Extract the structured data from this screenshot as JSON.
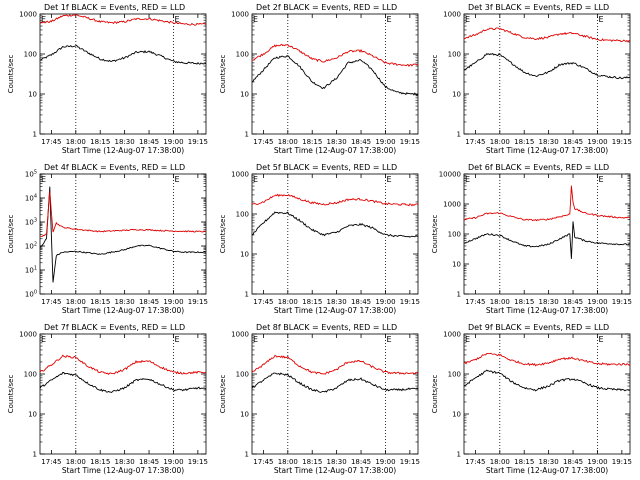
{
  "colors": {
    "events": "#000000",
    "lld": "#e00000",
    "axis": "#000000",
    "background": "#ffffff"
  },
  "common": {
    "ylabel": "Counts/sec",
    "xlabel": "Start Time (12-Aug-07 17:38:00)",
    "xticks": [
      "17:45",
      "18:00",
      "18:15",
      "18:30",
      "18:45",
      "19:00",
      "19:15"
    ],
    "marker_e": "E",
    "dotted_lines_at": [
      "18:00",
      "19:00"
    ]
  },
  "chart_data": [
    {
      "type": "line",
      "title": "Det 1f BLACK = Events, RED = LLD",
      "xlabel": "Start Time (12-Aug-07 17:38:00)",
      "ylabel": "Counts/sec",
      "yscale": "log",
      "xlim": [
        "17:38",
        "19:20"
      ],
      "ylim": [
        1,
        1000
      ],
      "yticks": [
        "1",
        "10",
        "100",
        "1000"
      ],
      "x": [
        "17:38",
        "17:45",
        "17:52",
        "18:00",
        "18:07",
        "18:15",
        "18:22",
        "18:30",
        "18:37",
        "18:45",
        "18:52",
        "19:00",
        "19:07",
        "19:15",
        "19:20"
      ],
      "series": [
        {
          "name": "BLACK = Events",
          "values": [
            70,
            95,
            150,
            160,
            110,
            75,
            65,
            80,
            110,
            115,
            90,
            65,
            60,
            58,
            60
          ]
        },
        {
          "name": "RED = LLD",
          "values": [
            600,
            650,
            900,
            950,
            800,
            640,
            600,
            640,
            750,
            760,
            680,
            600,
            560,
            550,
            550
          ]
        }
      ]
    },
    {
      "type": "line",
      "title": "Det 2f BLACK = Events, RED = LLD",
      "xlabel": "Start Time (12-Aug-07 17:38:00)",
      "ylabel": "Counts/sec",
      "yscale": "log",
      "xlim": [
        "17:38",
        "19:20"
      ],
      "ylim": [
        1,
        1000
      ],
      "yticks": [
        "1",
        "10",
        "100",
        "1000"
      ],
      "x": [
        "17:38",
        "17:45",
        "17:52",
        "18:00",
        "18:07",
        "18:15",
        "18:22",
        "18:30",
        "18:37",
        "18:45",
        "18:52",
        "19:00",
        "19:07",
        "19:15",
        "19:20"
      ],
      "series": [
        {
          "name": "BLACK = Events",
          "values": [
            20,
            40,
            80,
            90,
            50,
            20,
            14,
            25,
            60,
            70,
            40,
            15,
            11,
            10,
            10
          ]
        },
        {
          "name": "RED = LLD",
          "values": [
            70,
            100,
            160,
            170,
            120,
            75,
            65,
            80,
            115,
            120,
            90,
            60,
            55,
            52,
            55
          ]
        }
      ]
    },
    {
      "type": "line",
      "title": "Det 3f BLACK = Events, RED = LLD",
      "xlabel": "Start Time (12-Aug-07 17:38:00)",
      "ylabel": "Counts/sec",
      "yscale": "log",
      "xlim": [
        "17:38",
        "19:20"
      ],
      "ylim": [
        1,
        1000
      ],
      "yticks": [
        "1",
        "10",
        "100",
        "1000"
      ],
      "x": [
        "17:38",
        "17:45",
        "17:52",
        "18:00",
        "18:07",
        "18:15",
        "18:22",
        "18:30",
        "18:37",
        "18:45",
        "18:52",
        "19:00",
        "19:07",
        "19:15",
        "19:20"
      ],
      "series": [
        {
          "name": "BLACK = Events",
          "values": [
            40,
            60,
            100,
            95,
            60,
            35,
            28,
            35,
            55,
            60,
            45,
            30,
            27,
            25,
            26
          ]
        },
        {
          "name": "RED = LLD",
          "values": [
            250,
            300,
            420,
            430,
            340,
            260,
            240,
            260,
            320,
            330,
            280,
            230,
            220,
            215,
            215
          ]
        }
      ]
    },
    {
      "type": "line",
      "title": "Det 4f BLACK = Events, RED = LLD",
      "xlabel": "Start Time (12-Aug-07 17:38:00)",
      "ylabel": "Counts/sec",
      "yscale": "log",
      "xlim": [
        "17:38",
        "19:20"
      ],
      "ylim": [
        1,
        100000
      ],
      "yticks": [
        "10^0",
        "10^1",
        "10^2",
        "10^3",
        "10^4",
        "10^5"
      ],
      "x": [
        "17:38",
        "17:42",
        "17:44",
        "17:46",
        "17:48",
        "17:52",
        "18:00",
        "18:15",
        "18:30",
        "18:37",
        "18:45",
        "18:52",
        "19:00",
        "19:07",
        "19:15",
        "19:20"
      ],
      "series": [
        {
          "name": "BLACK = Events",
          "values": [
            80,
            200,
            30000,
            3,
            40,
            55,
            60,
            45,
            70,
            100,
            105,
            80,
            60,
            55,
            55,
            55
          ]
        },
        {
          "name": "RED = LLD",
          "values": [
            250,
            300,
            20000,
            400,
            900,
            600,
            500,
            400,
            450,
            480,
            470,
            440,
            420,
            410,
            400,
            400
          ]
        }
      ]
    },
    {
      "type": "line",
      "title": "Det 5f BLACK = Events, RED = LLD",
      "xlabel": "Start Time (12-Aug-07 17:38:00)",
      "ylabel": "Counts/sec",
      "yscale": "log",
      "xlim": [
        "17:38",
        "19:20"
      ],
      "ylim": [
        1,
        1000
      ],
      "yticks": [
        "1",
        "10",
        "100",
        "1000"
      ],
      "x": [
        "17:38",
        "17:45",
        "17:52",
        "18:00",
        "18:07",
        "18:15",
        "18:22",
        "18:30",
        "18:37",
        "18:45",
        "18:52",
        "19:00",
        "19:07",
        "19:15",
        "19:20"
      ],
      "series": [
        {
          "name": "BLACK = Events",
          "values": [
            30,
            60,
            110,
            105,
            70,
            40,
            30,
            35,
            50,
            55,
            45,
            30,
            28,
            27,
            28
          ]
        },
        {
          "name": "RED = LLD",
          "values": [
            170,
            200,
            290,
            300,
            240,
            190,
            175,
            190,
            230,
            235,
            210,
            180,
            175,
            170,
            170
          ]
        }
      ]
    },
    {
      "type": "line",
      "title": "Det 6f BLACK = Events, RED = LLD",
      "xlabel": "Start Time (12-Aug-07 17:38:00)",
      "ylabel": "Counts/sec",
      "yscale": "log",
      "xlim": [
        "17:38",
        "19:20"
      ],
      "ylim": [
        1,
        10000
      ],
      "yticks": [
        "1",
        "10",
        "100",
        "1000",
        "10000"
      ],
      "x": [
        "17:38",
        "17:45",
        "17:52",
        "18:00",
        "18:07",
        "18:15",
        "18:22",
        "18:30",
        "18:37",
        "18:43",
        "18:44",
        "18:45",
        "18:46",
        "18:52",
        "19:00",
        "19:07",
        "19:15",
        "19:20"
      ],
      "series": [
        {
          "name": "BLACK = Events",
          "values": [
            50,
            70,
            100,
            90,
            60,
            40,
            38,
            45,
            70,
            100,
            15,
            250,
            80,
            60,
            50,
            48,
            45,
            45
          ]
        },
        {
          "name": "RED = LLD",
          "values": [
            300,
            350,
            480,
            500,
            380,
            300,
            290,
            310,
            380,
            450,
            4000,
            1200,
            700,
            500,
            420,
            380,
            350,
            350
          ]
        }
      ]
    },
    {
      "type": "line",
      "title": "Det 7f BLACK = Events, RED = LLD",
      "xlabel": "Start Time (12-Aug-07 17:38:00)",
      "ylabel": "Counts/sec",
      "yscale": "log",
      "xlim": [
        "17:38",
        "19:20"
      ],
      "ylim": [
        1,
        1000
      ],
      "yticks": [
        "1",
        "10",
        "100",
        "1000"
      ],
      "x": [
        "17:38",
        "17:45",
        "17:52",
        "18:00",
        "18:07",
        "18:15",
        "18:22",
        "18:30",
        "18:37",
        "18:45",
        "18:52",
        "19:00",
        "19:07",
        "19:15",
        "19:20"
      ],
      "series": [
        {
          "name": "BLACK = Events",
          "values": [
            45,
            70,
            105,
            95,
            60,
            40,
            35,
            45,
            70,
            75,
            55,
            40,
            40,
            45,
            42
          ]
        },
        {
          "name": "RED = LLD",
          "values": [
            110,
            170,
            280,
            260,
            160,
            110,
            100,
            130,
            200,
            210,
            150,
            110,
            105,
            110,
            110
          ]
        }
      ]
    },
    {
      "type": "line",
      "title": "Det 8f BLACK = Events, RED = LLD",
      "xlabel": "Start Time (12-Aug-07 17:38:00)",
      "ylabel": "Counts/sec",
      "yscale": "log",
      "xlim": [
        "17:38",
        "19:20"
      ],
      "ylim": [
        1,
        1000
      ],
      "yticks": [
        "1",
        "10",
        "100",
        "1000"
      ],
      "x": [
        "17:38",
        "17:45",
        "17:52",
        "18:00",
        "18:07",
        "18:15",
        "18:22",
        "18:30",
        "18:37",
        "18:45",
        "18:52",
        "19:00",
        "19:07",
        "19:15",
        "19:20"
      ],
      "series": [
        {
          "name": "BLACK = Events",
          "values": [
            45,
            70,
            105,
            95,
            60,
            40,
            35,
            45,
            70,
            75,
            55,
            40,
            40,
            42,
            42
          ]
        },
        {
          "name": "RED = LLD",
          "values": [
            110,
            170,
            280,
            260,
            160,
            110,
            100,
            130,
            200,
            210,
            150,
            110,
            105,
            105,
            105
          ]
        }
      ]
    },
    {
      "type": "line",
      "title": "Det 9f BLACK = Events, RED = LLD",
      "xlabel": "Start Time (12-Aug-07 17:38:00)",
      "ylabel": "Counts/sec",
      "yscale": "log",
      "xlim": [
        "17:38",
        "19:20"
      ],
      "ylim": [
        1,
        1000
      ],
      "yticks": [
        "1",
        "10",
        "100",
        "1000"
      ],
      "x": [
        "17:38",
        "17:45",
        "17:52",
        "18:00",
        "18:07",
        "18:15",
        "18:22",
        "18:30",
        "18:37",
        "18:45",
        "18:52",
        "19:00",
        "19:07",
        "19:15",
        "19:20"
      ],
      "series": [
        {
          "name": "BLACK = Events",
          "values": [
            50,
            80,
            120,
            105,
            65,
            45,
            40,
            50,
            70,
            75,
            60,
            45,
            42,
            40,
            40
          ]
        },
        {
          "name": "RED = LLD",
          "values": [
            180,
            230,
            320,
            300,
            220,
            180,
            170,
            190,
            240,
            250,
            210,
            180,
            175,
            175,
            175
          ]
        }
      ]
    }
  ]
}
